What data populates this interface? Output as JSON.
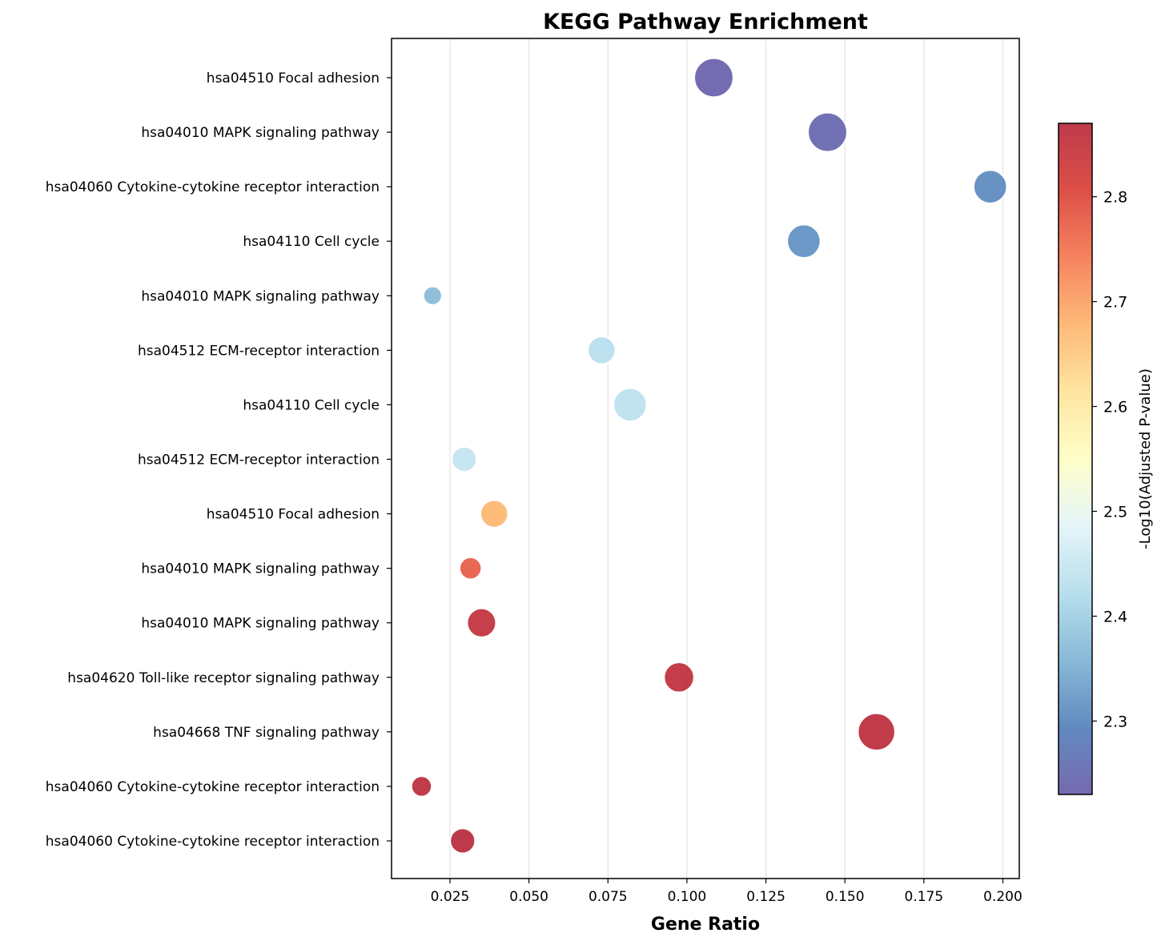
{
  "chart_data": {
    "type": "scatter",
    "title": "KEGG Pathway Enrichment",
    "xlabel": "Gene Ratio",
    "ylabel": "",
    "xlim": [
      0.0065,
      0.2052
    ],
    "xticks": [
      0.025,
      0.05,
      0.075,
      0.1,
      0.125,
      0.15,
      0.175,
      0.2
    ],
    "xtick_labels": [
      "0.025",
      "0.050",
      "0.075",
      "0.100",
      "0.125",
      "0.150",
      "0.175",
      "0.200"
    ],
    "grid": "x-vertical",
    "categories": [
      "hsa04510 Focal adhesion",
      "hsa04010 MAPK signaling pathway",
      "hsa04060 Cytokine-cytokine receptor interaction",
      "hsa04110 Cell cycle",
      "hsa04010 MAPK signaling pathway",
      "hsa04512 ECM-receptor interaction",
      "hsa04110 Cell cycle",
      "hsa04512 ECM-receptor interaction",
      "hsa04510 Focal adhesion",
      "hsa04010 MAPK signaling pathway",
      "hsa04010 MAPK signaling pathway",
      "hsa04620 Toll-like receptor signaling pathway",
      "hsa04668 TNF signaling pathway",
      "hsa04060 Cytokine-cytokine receptor interaction",
      "hsa04060 Cytokine-cytokine receptor interaction"
    ],
    "points": [
      {
        "x": 0.1085,
        "color_value": 2.235,
        "count": 22
      },
      {
        "x": 0.1445,
        "color_value": 2.245,
        "count": 22
      },
      {
        "x": 0.196,
        "color_value": 2.305,
        "count": 16
      },
      {
        "x": 0.137,
        "color_value": 2.315,
        "count": 16
      },
      {
        "x": 0.0195,
        "color_value": 2.37,
        "count": 5
      },
      {
        "x": 0.073,
        "color_value": 2.43,
        "count": 11
      },
      {
        "x": 0.082,
        "color_value": 2.435,
        "count": 16
      },
      {
        "x": 0.0295,
        "color_value": 2.445,
        "count": 9
      },
      {
        "x": 0.039,
        "color_value": 2.675,
        "count": 11
      },
      {
        "x": 0.0315,
        "color_value": 2.775,
        "count": 7
      },
      {
        "x": 0.035,
        "color_value": 2.855,
        "count": 12
      },
      {
        "x": 0.0975,
        "color_value": 2.86,
        "count": 13
      },
      {
        "x": 0.16,
        "color_value": 2.865,
        "count": 20
      },
      {
        "x": 0.016,
        "color_value": 2.865,
        "count": 6
      },
      {
        "x": 0.029,
        "color_value": 2.87,
        "count": 9
      }
    ],
    "colorbar": {
      "label": "-Log10(Adjusted P-value)",
      "range": [
        2.23,
        2.87
      ],
      "ticks": [
        2.3,
        2.4,
        2.5,
        2.6,
        2.7,
        2.8
      ],
      "tick_labels": [
        "2.3",
        "2.4",
        "2.5",
        "2.6",
        "2.7",
        "2.8"
      ],
      "colormap": "RdYlBu_r",
      "colors": [
        "#5e4fa2",
        "#4575b4",
        "#74add1",
        "#abd9e9",
        "#e0f3f8",
        "#ffffbf",
        "#fee090",
        "#fdae61",
        "#f46d43",
        "#d73027",
        "#b2182b"
      ]
    },
    "legend": "none"
  }
}
